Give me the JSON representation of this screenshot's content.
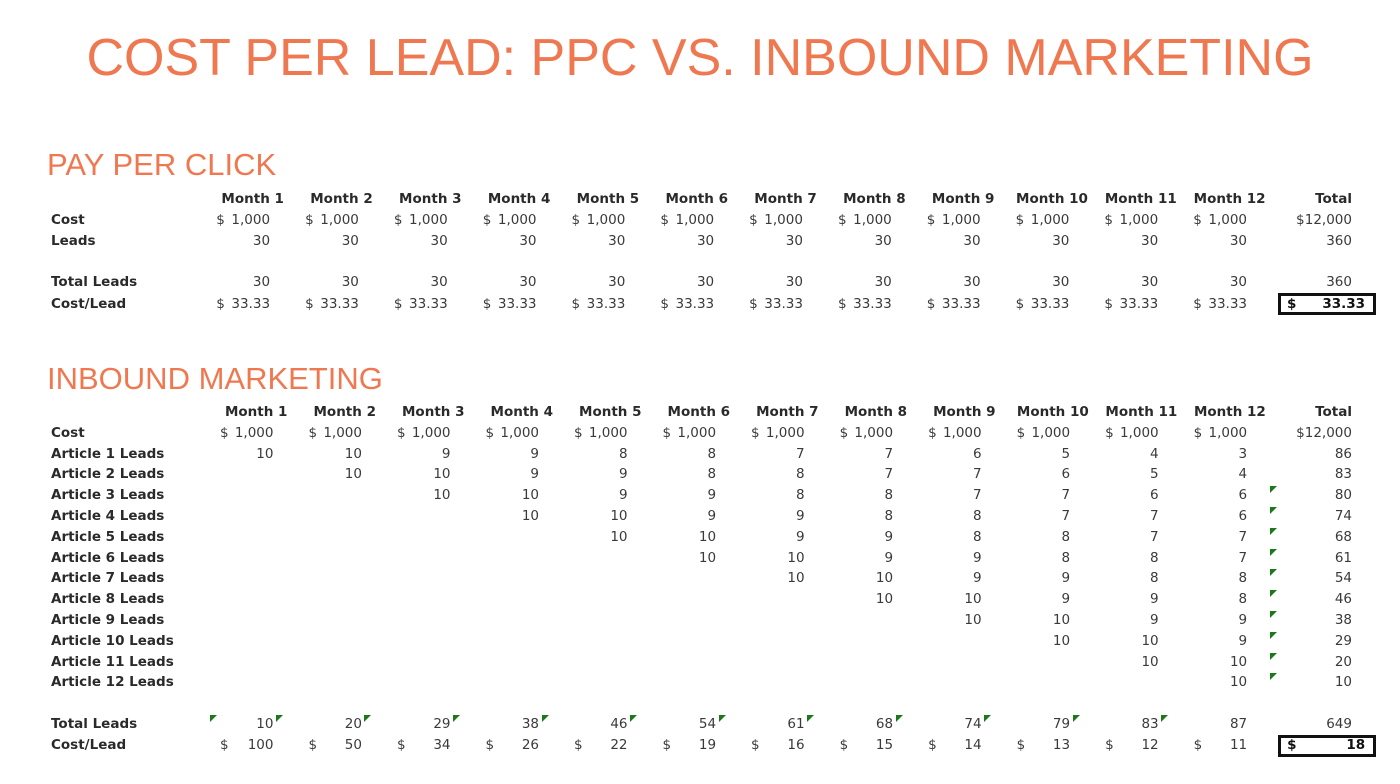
{
  "slide": {
    "title": "COST PER LEAD: PPC VS. INBOUND MARKETING",
    "accent_color": "#f07850"
  },
  "ppc": {
    "section_title": "PAY PER CLICK",
    "headers": [
      "Month 1",
      "Month 2",
      "Month 3",
      "Month 4",
      "Month 5",
      "Month 6",
      "Month 7",
      "Month 8",
      "Month 9",
      "Month 10",
      "Month 11",
      "Month 12",
      "Total"
    ],
    "rows": {
      "cost": {
        "label": "Cost",
        "currency": "$",
        "values": [
          "1,000",
          "1,000",
          "1,000",
          "1,000",
          "1,000",
          "1,000",
          "1,000",
          "1,000",
          "1,000",
          "1,000",
          "1,000",
          "1,000"
        ],
        "total": "12,000"
      },
      "leads": {
        "label": "Leads",
        "values": [
          "30",
          "30",
          "30",
          "30",
          "30",
          "30",
          "30",
          "30",
          "30",
          "30",
          "30",
          "30"
        ],
        "total": "360"
      },
      "total_leads": {
        "label": "Total Leads",
        "values": [
          "30",
          "30",
          "30",
          "30",
          "30",
          "30",
          "30",
          "30",
          "30",
          "30",
          "30",
          "30"
        ],
        "total": "360"
      },
      "cost_per_lead": {
        "label": "Cost/Lead",
        "currency": "$",
        "values": [
          "33.33",
          "33.33",
          "33.33",
          "33.33",
          "33.33",
          "33.33",
          "33.33",
          "33.33",
          "33.33",
          "33.33",
          "33.33",
          "33.33"
        ],
        "total": "33.33"
      }
    }
  },
  "inbound": {
    "section_title": "INBOUND MARKETING",
    "headers": [
      "Month 1",
      "Month 2",
      "Month 3",
      "Month 4",
      "Month 5",
      "Month 6",
      "Month 7",
      "Month 8",
      "Month 9",
      "Month 10",
      "Month 11",
      "Month 12",
      "Total"
    ],
    "cost": {
      "label": "Cost",
      "currency": "$",
      "values": [
        "1,000",
        "1,000",
        "1,000",
        "1,000",
        "1,000",
        "1,000",
        "1,000",
        "1,000",
        "1,000",
        "1,000",
        "1,000",
        "1,000"
      ],
      "total": "12,000"
    },
    "articles": [
      {
        "label": "Article 1 Leads",
        "values": [
          "10",
          "10",
          "9",
          "9",
          "8",
          "8",
          "7",
          "7",
          "6",
          "5",
          "4",
          "3"
        ],
        "total": "86",
        "flag": false
      },
      {
        "label": "Article 2 Leads",
        "values": [
          "",
          "10",
          "10",
          "9",
          "9",
          "8",
          "8",
          "7",
          "7",
          "6",
          "5",
          "4"
        ],
        "total": "83",
        "flag": false
      },
      {
        "label": "Article 3 Leads",
        "values": [
          "",
          "",
          "10",
          "10",
          "9",
          "9",
          "8",
          "8",
          "7",
          "7",
          "6",
          "6"
        ],
        "total": "80",
        "flag": true
      },
      {
        "label": "Article 4 Leads",
        "values": [
          "",
          "",
          "",
          "10",
          "10",
          "9",
          "9",
          "8",
          "8",
          "7",
          "7",
          "6"
        ],
        "total": "74",
        "flag": true
      },
      {
        "label": "Article 5 Leads",
        "values": [
          "",
          "",
          "",
          "",
          "10",
          "10",
          "9",
          "9",
          "8",
          "8",
          "7",
          "7"
        ],
        "total": "68",
        "flag": true
      },
      {
        "label": "Article 6 Leads",
        "values": [
          "",
          "",
          "",
          "",
          "",
          "10",
          "10",
          "9",
          "9",
          "8",
          "8",
          "7"
        ],
        "total": "61",
        "flag": true
      },
      {
        "label": "Article 7 Leads",
        "values": [
          "",
          "",
          "",
          "",
          "",
          "",
          "10",
          "10",
          "9",
          "9",
          "8",
          "8"
        ],
        "total": "54",
        "flag": true
      },
      {
        "label": "Article 8 Leads",
        "values": [
          "",
          "",
          "",
          "",
          "",
          "",
          "",
          "10",
          "10",
          "9",
          "9",
          "8"
        ],
        "total": "46",
        "flag": true
      },
      {
        "label": "Article 9 Leads",
        "values": [
          "",
          "",
          "",
          "",
          "",
          "",
          "",
          "",
          "10",
          "10",
          "9",
          "9"
        ],
        "total": "38",
        "flag": true
      },
      {
        "label": "Article 10 Leads",
        "values": [
          "",
          "",
          "",
          "",
          "",
          "",
          "",
          "",
          "",
          "10",
          "10",
          "9"
        ],
        "total": "29",
        "flag": true
      },
      {
        "label": "Article 11 Leads",
        "values": [
          "",
          "",
          "",
          "",
          "",
          "",
          "",
          "",
          "",
          "",
          "10",
          "10"
        ],
        "total": "20",
        "flag": true
      },
      {
        "label": "Article 12 Leads",
        "values": [
          "",
          "",
          "",
          "",
          "",
          "",
          "",
          "",
          "",
          "",
          "",
          "10"
        ],
        "total": "10",
        "flag": true
      }
    ],
    "total_leads": {
      "label": "Total Leads",
      "values": [
        "10",
        "20",
        "29",
        "38",
        "46",
        "54",
        "61",
        "68",
        "74",
        "79",
        "83",
        "87"
      ],
      "total": "649"
    },
    "cost_per_lead": {
      "label": "Cost/Lead",
      "currency": "$",
      "values": [
        "100",
        "50",
        "34",
        "26",
        "22",
        "19",
        "16",
        "15",
        "14",
        "13",
        "12",
        "11"
      ],
      "total": "18"
    }
  },
  "colors": {
    "error_flag": "#1a7a1a",
    "text": "#3a3a3a"
  }
}
